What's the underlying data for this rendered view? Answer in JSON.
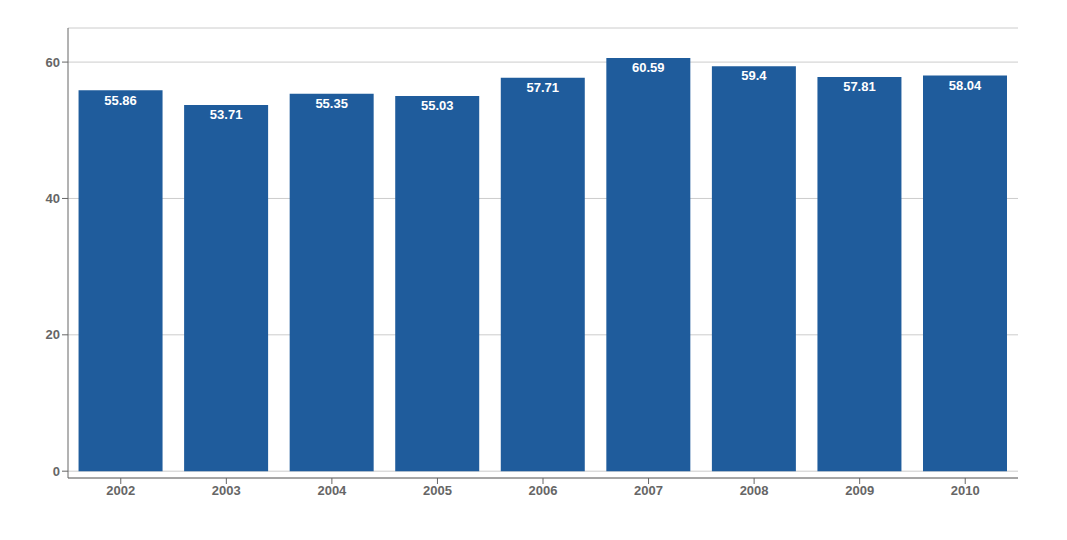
{
  "chart_data": {
    "type": "bar",
    "categories": [
      "2002",
      "2003",
      "2004",
      "2005",
      "2006",
      "2007",
      "2008",
      "2009",
      "2010"
    ],
    "values": [
      55.86,
      53.71,
      55.35,
      55.03,
      57.71,
      60.59,
      59.4,
      57.81,
      58.04
    ],
    "color": "#1F5C9C",
    "ylim": [
      -1,
      65
    ],
    "yticks": [
      0,
      20,
      40,
      60
    ],
    "grid": true,
    "data_labels": true
  }
}
